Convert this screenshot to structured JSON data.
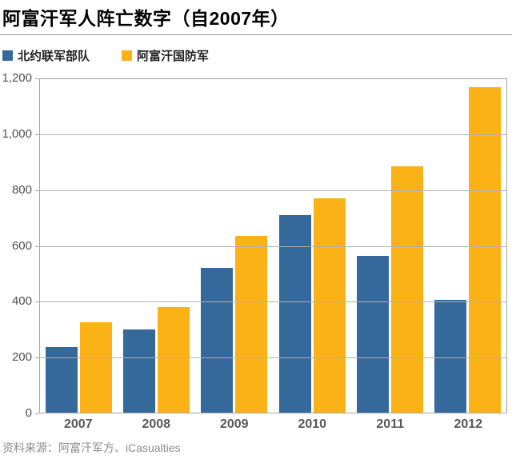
{
  "title": "阿富汗军人阵亡数字（自2007年）",
  "source_note": "资料来源：阿富汗军方、iCasualties",
  "colors": {
    "nato_blue": "#35689b",
    "afghan_yellow": "#fbb216",
    "gridline_gray": "#b0b0b0",
    "axis_border_gray": "#a3a3a3",
    "axis_text_gray": "#4f4f4f"
  },
  "chart_data": {
    "type": "bar",
    "title": "阿富汗军人阵亡数字（自2007年）",
    "categories": [
      "2007",
      "2008",
      "2009",
      "2010",
      "2011",
      "2012"
    ],
    "series": [
      {
        "name": "北约联军部队",
        "color": "#35689b",
        "values": [
          235,
          300,
          520,
          710,
          565,
          405
        ]
      },
      {
        "name": "阿富汗国防军",
        "color": "#fbb216",
        "values": [
          325,
          380,
          635,
          770,
          885,
          1170
        ]
      }
    ],
    "xlabel": "",
    "ylabel": "",
    "ylim": [
      0,
      1200
    ],
    "yticks": [
      1200,
      1000,
      800,
      600,
      400,
      200,
      0
    ],
    "ytick_labels": [
      "1,200",
      "1,000",
      "800",
      "600",
      "400",
      "200",
      "0"
    ],
    "grid": "horizontal",
    "legend_position": "top-left",
    "source": "资料来源：阿富汗军方、iCasualties"
  }
}
